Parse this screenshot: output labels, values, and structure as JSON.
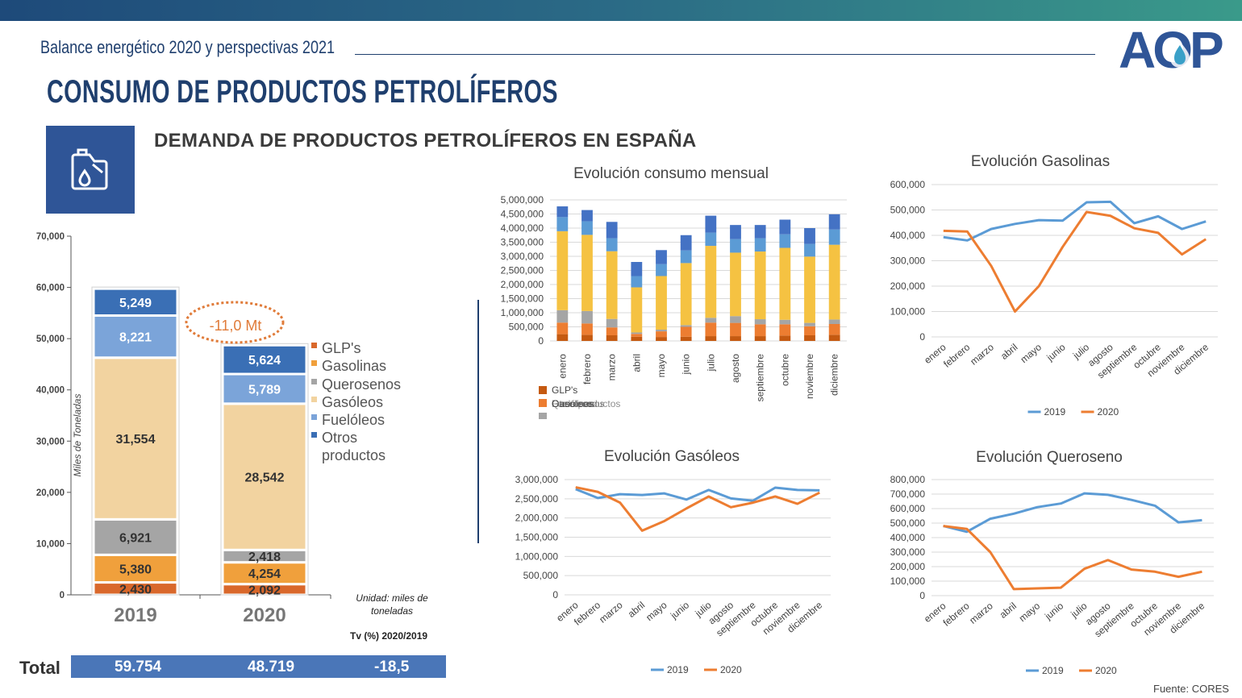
{
  "header": {
    "subtitle": "Balance energético 2020 y perspectivas 2021",
    "logo_text": "AOP",
    "title": "CONSUMO DE PRODUCTOS PETROLÍFEROS",
    "section_title": "DEMANDA DE PRODUCTOS PETROLÍFEROS EN ESPAÑA",
    "icon": "fuel-can-icon"
  },
  "colors": {
    "accent": "#1f3f6e",
    "glp": "#d9682b",
    "gasolinas": "#f0a03c",
    "querosenos": "#a5a5a5",
    "gasoleos": "#f2d3a0",
    "fueloleos": "#7ba4d9",
    "otros": "#3a6fb5",
    "line2019": "#5b9bd5",
    "line2020": "#ed7d31"
  },
  "chart_data": [
    {
      "type": "bar",
      "stacked": true,
      "categories": [
        "2019",
        "2020"
      ],
      "ylabel": "Miles de Toneladas",
      "ylim": [
        0,
        70000
      ],
      "yticks": [
        "0",
        "10,000",
        "20,000",
        "30,000",
        "40,000",
        "50,000",
        "60,000",
        "70,000"
      ],
      "series": [
        {
          "name": "GLP's",
          "values": [
            2430,
            2092
          ],
          "labels": [
            "2,430",
            "2,092"
          ]
        },
        {
          "name": "Gasolinas",
          "values": [
            5380,
            4254
          ],
          "labels": [
            "5,380",
            "4,254"
          ]
        },
        {
          "name": "Querosenos",
          "values": [
            6921,
            2418
          ],
          "labels": [
            "6,921",
            "2,418"
          ]
        },
        {
          "name": "Gasóleos",
          "values": [
            31554,
            28542
          ],
          "labels": [
            "31,554",
            "28,542"
          ]
        },
        {
          "name": "Fuelóleos",
          "values": [
            8221,
            5789
          ],
          "labels": [
            "8,221",
            "5,789"
          ]
        },
        {
          "name": "Otros productos",
          "values": [
            5249,
            5624
          ],
          "labels": [
            "5,249",
            "5,624"
          ]
        }
      ],
      "annotation": "-11,0 Mt",
      "unit_note": "Unidad: miles de toneladas",
      "tv_label": "Tv (%) 2020/2019",
      "totals": {
        "label": "Total",
        "v2019": "59.754",
        "v2020": "48.719",
        "tv": "-18,5"
      }
    },
    {
      "type": "bar",
      "stacked": true,
      "title": "Evolución consumo mensual",
      "categories": [
        "enero",
        "febrero",
        "marzo",
        "abril",
        "mayo",
        "junio",
        "julio",
        "agosto",
        "septiembre",
        "octubre",
        "noviembre",
        "diciembre"
      ],
      "ylim": [
        0,
        5000000
      ],
      "yticks": [
        "0",
        "500,000",
        "1,000,000",
        "1,500,000",
        "2,000,000",
        "2,500,000",
        "3,000,000",
        "3,500,000",
        "4,000,000",
        "4,500,000",
        "5,000,000"
      ],
      "legend_text": [
        "GLP's",
        "Gasolinas",
        "Querosenos",
        "Gasóleos",
        "Fuelóleos",
        "Otros productos"
      ],
      "series": [
        {
          "name": "GLP's",
          "values": [
            240000,
            220000,
            200000,
            150000,
            140000,
            150000,
            170000,
            170000,
            170000,
            190000,
            200000,
            220000
          ]
        },
        {
          "name": "Gasolinas",
          "values": [
            410000,
            400000,
            280000,
            100000,
            200000,
            350000,
            480000,
            470000,
            420000,
            400000,
            320000,
            380000
          ]
        },
        {
          "name": "Querosenos",
          "values": [
            440000,
            440000,
            300000,
            50000,
            60000,
            60000,
            170000,
            240000,
            180000,
            160000,
            120000,
            160000
          ]
        },
        {
          "name": "Gasóleos",
          "values": [
            2800000,
            2700000,
            2400000,
            1600000,
            1900000,
            2200000,
            2550000,
            2250000,
            2400000,
            2550000,
            2350000,
            2650000
          ]
        },
        {
          "name": "Fuelóleos",
          "values": [
            500000,
            480000,
            460000,
            400000,
            420000,
            450000,
            470000,
            480000,
            470000,
            480000,
            450000,
            540000
          ]
        },
        {
          "name": "Otros productos",
          "values": [
            380000,
            400000,
            580000,
            500000,
            500000,
            540000,
            600000,
            500000,
            470000,
            520000,
            560000,
            540000
          ]
        }
      ]
    },
    {
      "type": "line",
      "title": "Evolución Gasolinas",
      "categories": [
        "enero",
        "febrero",
        "marzo",
        "abril",
        "mayo",
        "junio",
        "julio",
        "agosto",
        "septiembre",
        "octubre",
        "noviembre",
        "diciembre"
      ],
      "ylim": [
        0,
        600000
      ],
      "yticks": [
        "0",
        "100,000",
        "200,000",
        "300,000",
        "400,000",
        "500,000",
        "600,000"
      ],
      "series": [
        {
          "name": "2019",
          "values": [
            393000,
            380000,
            425000,
            445000,
            460000,
            458000,
            530000,
            532000,
            448000,
            475000,
            425000,
            455000
          ]
        },
        {
          "name": "2020",
          "values": [
            418000,
            415000,
            280000,
            100000,
            200000,
            355000,
            492000,
            477000,
            428000,
            410000,
            325000,
            385000
          ]
        }
      ]
    },
    {
      "type": "line",
      "title": "Evolución Gasóleos",
      "categories": [
        "enero",
        "febrero",
        "marzo",
        "abril",
        "mayo",
        "junio",
        "julio",
        "agosto",
        "septiembre",
        "octubre",
        "noviembre",
        "diciembre"
      ],
      "ylim": [
        0,
        3000000
      ],
      "yticks": [
        "0",
        "500,000",
        "1,000,000",
        "1,500,000",
        "2,000,000",
        "2,500,000",
        "3,000,000"
      ],
      "series": [
        {
          "name": "2019",
          "values": [
            2750000,
            2520000,
            2620000,
            2600000,
            2640000,
            2480000,
            2730000,
            2510000,
            2450000,
            2790000,
            2730000,
            2720000
          ]
        },
        {
          "name": "2020",
          "values": [
            2800000,
            2680000,
            2400000,
            1670000,
            1920000,
            2250000,
            2560000,
            2280000,
            2400000,
            2560000,
            2370000,
            2660000
          ]
        }
      ]
    },
    {
      "type": "line",
      "title": "Evolución Queroseno",
      "categories": [
        "enero",
        "febrero",
        "marzo",
        "abril",
        "mayo",
        "junio",
        "julio",
        "agosto",
        "septiembre",
        "octubre",
        "noviembre",
        "diciembre"
      ],
      "ylim": [
        0,
        800000
      ],
      "yticks": [
        "0",
        "100,000",
        "200,000",
        "300,000",
        "400,000",
        "500,000",
        "600,000",
        "700,000",
        "800,000"
      ],
      "series": [
        {
          "name": "2019",
          "values": [
            480000,
            440000,
            530000,
            565000,
            610000,
            635000,
            705000,
            695000,
            660000,
            620000,
            505000,
            520000
          ]
        },
        {
          "name": "2020",
          "values": [
            480000,
            460000,
            300000,
            45000,
            50000,
            55000,
            185000,
            245000,
            180000,
            165000,
            130000,
            165000
          ]
        }
      ]
    }
  ],
  "footer": {
    "source": "Fuente: CORES"
  }
}
